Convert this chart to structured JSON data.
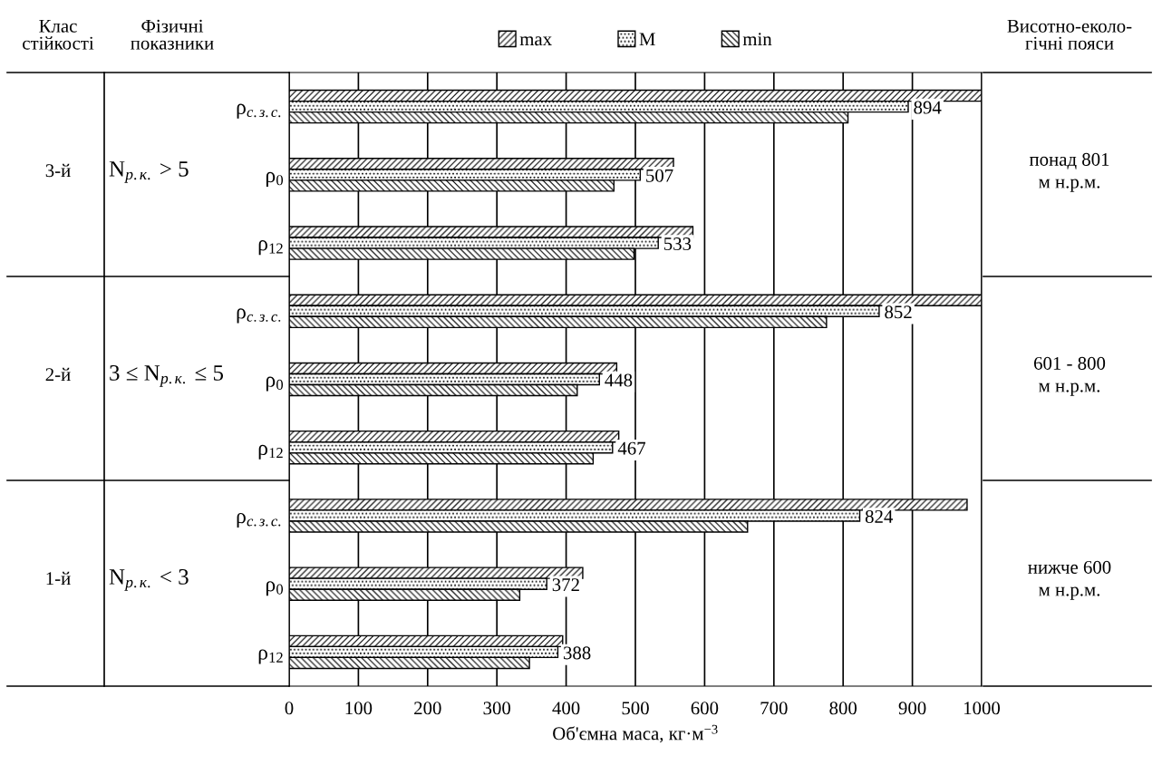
{
  "chart_data": {
    "type": "bar",
    "orientation": "horizontal",
    "categories": [
      "ρ$_{с.з.с.}$",
      "ρ$_{0}$",
      "ρ$_{12}$",
      "ρ$_{с.з.с.}$",
      "ρ$_{0}$",
      "ρ$_{12}$",
      "ρ$_{с.з.с.}$",
      "ρ$_{0}$",
      "ρ$_{12}$"
    ],
    "series": [
      {
        "name": "max",
        "color": "#000000",
        "values": [
          1000,
          555,
          583,
          1000,
          473,
          476,
          979,
          424,
          395
        ]
      },
      {
        "name": "M",
        "color": "#000000",
        "values": [
          894,
          507,
          533,
          852,
          448,
          467,
          824,
          372,
          388
        ],
        "value_labels": [
          "894",
          "507",
          "533",
          "852",
          "448",
          "467",
          "824",
          "372",
          "388"
        ]
      },
      {
        "name": "min",
        "color": "#000000",
        "values": [
          807,
          469,
          498,
          776,
          416,
          439,
          662,
          333,
          347
        ]
      }
    ],
    "xlabel": "Об'ємна маса, кг·м$^{−3}$",
    "xlim": [
      0,
      1000
    ],
    "xticks": [
      0,
      100,
      200,
      300,
      400,
      500,
      600,
      700,
      800,
      900,
      1000
    ],
    "grid": "x",
    "legend": "top",
    "annotations": [
      "Клас\nстійкості",
      "Фізичні\nпоказники",
      "Висотно-еколо-\nгічні пояси",
      "3-й",
      "N$_{р.к.}$ > 5",
      "понад 801\nм н.р.м.",
      "2-й",
      "3 ≤ N$_{р.к.}$ ≤ 5",
      "601 - 800\nм н.р.м.",
      "1-й",
      "N$_{р.к.}$ < 3",
      "нижче 600\nм н.р.м."
    ]
  }
}
